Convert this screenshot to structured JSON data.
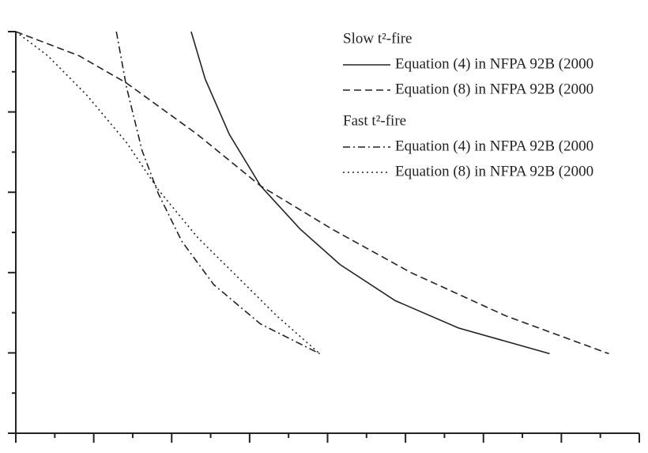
{
  "chart_data": {
    "type": "line",
    "xlim": [
      0,
      8
    ],
    "xticks": [
      0,
      0.5,
      1,
      1.5,
      2,
      2.5,
      3,
      3.5,
      4,
      4.5,
      5,
      5.5,
      6,
      6.5,
      7,
      7.5,
      8
    ],
    "ylim": [
      0,
      5
    ],
    "yticks": [
      0,
      0.5,
      1,
      1.5,
      2,
      2.5,
      3,
      3.5,
      4,
      4.5,
      5
    ],
    "groups": [
      {
        "title": "Slow t²-fire",
        "series": [
          {
            "name": "Equation (4) in NFPA 92B (2000",
            "color": "#222222",
            "dash": "solid",
            "x": [
              2.25,
              2.43,
              2.74,
              3.14,
              3.65,
              4.16,
              4.87,
              5.68,
              6.85
            ],
            "values": [
              5.0,
              4.41,
              3.72,
              3.08,
              2.54,
              2.1,
              1.65,
              1.31,
              0.99
            ]
          },
          {
            "name": "Equation (8) in NFPA 92B (2000",
            "color": "#222222",
            "dash": "dashed",
            "x": [
              0,
              0.81,
              1.42,
              2.33,
              3.14,
              4.06,
              5.07,
              6.29,
              7.61
            ],
            "values": [
              5.0,
              4.7,
              4.36,
              3.72,
              3.08,
              2.54,
              2.0,
              1.46,
              0.99
            ]
          }
        ]
      },
      {
        "title": "Fast t²-fire",
        "series": [
          {
            "name": "Equation (4) in NFPA 92B (2000",
            "color": "#222222",
            "dash": "dashdot",
            "x": [
              1.29,
              1.42,
              1.62,
              1.83,
              2.13,
              2.54,
              3.14,
              3.9
            ],
            "values": [
              5.0,
              4.31,
              3.52,
              2.98,
              2.39,
              1.85,
              1.36,
              0.99
            ]
          },
          {
            "name": "Equation (8) in NFPA 92B (2000",
            "color": "#222222",
            "dash": "dotted",
            "x": [
              0,
              0.41,
              0.91,
              1.42,
              1.83,
              2.33,
              2.84,
              3.35,
              3.9
            ],
            "values": [
              5.0,
              4.7,
              4.21,
              3.62,
              3.03,
              2.44,
              1.95,
              1.46,
              0.99
            ]
          }
        ]
      }
    ]
  }
}
